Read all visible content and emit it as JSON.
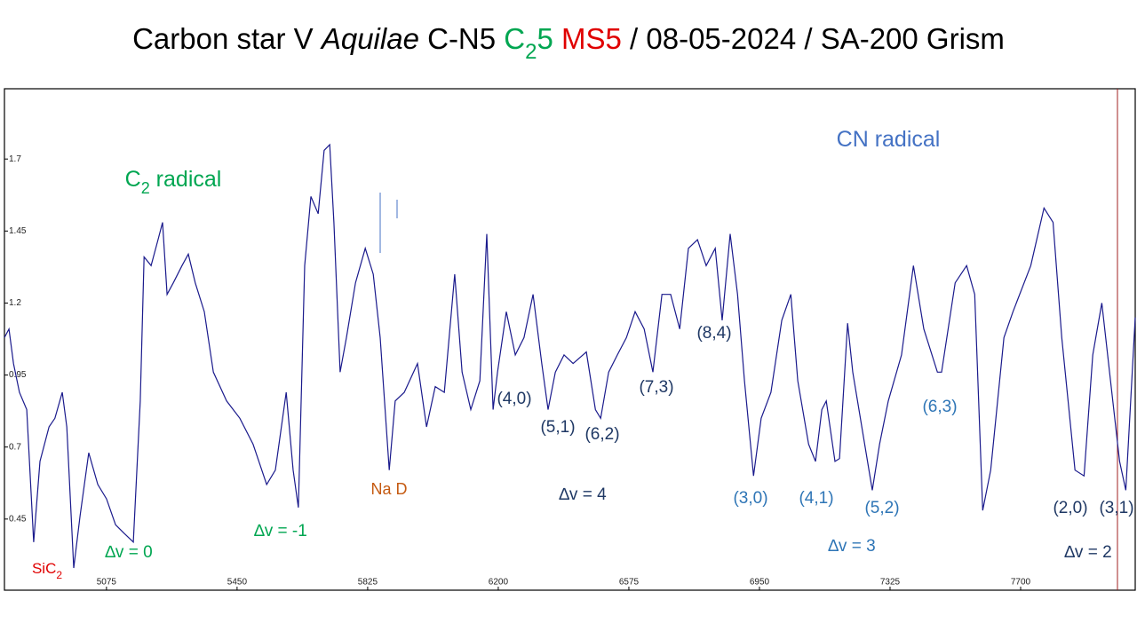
{
  "chart_data": {
    "type": "line",
    "title": [
      "Carbon star V ",
      "Aquilae",
      "  C-N5 ",
      "C",
      "2",
      "5",
      " MS5",
      " / 08-05-2024 / SA-200 Grism"
    ],
    "title_colors": [
      "#000000",
      "#000000",
      "#000000",
      "#00a651",
      "#00a651",
      "#00a651",
      "#e00000",
      "#000000"
    ],
    "x": [
      4782,
      4795,
      4808,
      4825,
      4846,
      4866,
      4884,
      4910,
      4927,
      4948,
      4961,
      4981,
      4999,
      5024,
      5050,
      5075,
      5101,
      5126,
      5152,
      5172,
      5183,
      5203,
      5223,
      5236,
      5249,
      5267,
      5292,
      5310,
      5330,
      5356,
      5382,
      5420,
      5458,
      5496,
      5535,
      5560,
      5591,
      5611,
      5626,
      5644,
      5662,
      5683,
      5700,
      5716,
      5728,
      5746,
      5764,
      5790,
      5818,
      5841,
      5861,
      5887,
      5904,
      5930,
      5968,
      5994,
      6019,
      6045,
      6075,
      6096,
      6121,
      6147,
      6167,
      6185,
      6198,
      6223,
      6249,
      6274,
      6300,
      6325,
      6343,
      6364,
      6389,
      6415,
      6453,
      6479,
      6494,
      6517,
      6542,
      6568,
      6593,
      6619,
      6644,
      6670,
      6695,
      6721,
      6746,
      6772,
      6797,
      6823,
      6843,
      6866,
      6887,
      6907,
      6933,
      6955,
      6983,
      7014,
      7040,
      7060,
      7091,
      7111,
      7129,
      7142,
      7167,
      7180,
      7203,
      7218,
      7244,
      7274,
      7295,
      7320,
      7358,
      7392,
      7422,
      7461,
      7473,
      7512,
      7545,
      7568,
      7591,
      7614,
      7652,
      7678,
      7729,
      7767,
      7793,
      7818,
      7856,
      7882,
      7907,
      7933,
      7958,
      7984,
      8002,
      8029
    ],
    "series": [
      {
        "name": "V Aquilae",
        "color": "#1a1a8c",
        "values": [
          1.08,
          1.11,
          0.99,
          0.89,
          0.83,
          0.37,
          0.65,
          0.77,
          0.8,
          0.89,
          0.77,
          0.28,
          0.46,
          0.68,
          0.57,
          0.52,
          0.43,
          0.4,
          0.37,
          0.86,
          1.36,
          1.33,
          1.42,
          1.48,
          1.23,
          1.27,
          1.33,
          1.37,
          1.27,
          1.17,
          0.96,
          0.86,
          0.8,
          0.71,
          0.57,
          0.62,
          0.89,
          0.62,
          0.49,
          1.33,
          1.57,
          1.51,
          1.73,
          1.75,
          1.48,
          0.96,
          1.08,
          1.27,
          1.39,
          1.3,
          1.08,
          0.62,
          0.86,
          0.89,
          0.99,
          0.77,
          0.91,
          0.89,
          1.3,
          0.96,
          0.83,
          0.93,
          1.44,
          0.83,
          0.96,
          1.17,
          1.02,
          1.08,
          1.23,
          0.99,
          0.83,
          0.96,
          1.02,
          0.99,
          1.03,
          0.83,
          0.8,
          0.96,
          1.02,
          1.08,
          1.17,
          1.11,
          0.96,
          1.23,
          1.23,
          1.11,
          1.39,
          1.42,
          1.33,
          1.39,
          1.14,
          1.44,
          1.23,
          0.93,
          0.6,
          0.8,
          0.89,
          1.14,
          1.23,
          0.93,
          0.71,
          0.65,
          0.83,
          0.86,
          0.65,
          0.66,
          1.13,
          0.96,
          0.77,
          0.55,
          0.71,
          0.86,
          1.02,
          1.33,
          1.11,
          0.96,
          0.96,
          1.27,
          1.33,
          1.23,
          0.48,
          0.62,
          1.08,
          1.17,
          1.33,
          1.53,
          1.48,
          1.08,
          0.62,
          0.6,
          1.02,
          1.2,
          0.93,
          0.65,
          0.55,
          1.15
        ]
      }
    ],
    "xlim": [
      4782,
      8029
    ],
    "ylim": [
      0.203,
      1.944
    ],
    "xticks": [
      5075,
      5450,
      5825,
      6200,
      6575,
      6950,
      7325,
      7700
    ],
    "yticks": [
      1.7,
      1.45,
      1.2,
      {
        "value": 0.95,
        "label": "0.95"
      },
      0.7,
      0.45
    ],
    "annotations": [
      {
        "parts": [
          "C",
          "2",
          " radical"
        ],
        "color": "#00a651"
      },
      {
        "parts": [
          "CN radical"
        ],
        "color": "#4472c4"
      },
      {
        "parts": [
          "SiC",
          "2"
        ],
        "color": "#e00000"
      },
      {
        "parts": [
          "∆v = 0"
        ],
        "color": "#00a651"
      },
      {
        "parts": [
          "∆v = -1"
        ],
        "color": "#00a651"
      },
      {
        "parts": [
          "Na D"
        ],
        "color": "#c55a11"
      },
      {
        "parts": [
          "∆v = 4"
        ],
        "color": "#1f3864"
      },
      {
        "parts": [
          "(4,0)"
        ],
        "color": "#1f3864"
      },
      {
        "parts": [
          "(5,1)"
        ],
        "color": "#1f3864"
      },
      {
        "parts": [
          "(6,2)"
        ],
        "color": "#1f3864"
      },
      {
        "parts": [
          "(7,3)"
        ],
        "color": "#1f3864"
      },
      {
        "parts": [
          "(8,4)"
        ],
        "color": "#1f3864"
      },
      {
        "parts": [
          "(3,0)"
        ],
        "color": "#2e75b6"
      },
      {
        "parts": [
          "(4,1)"
        ],
        "color": "#2e75b6"
      },
      {
        "parts": [
          "(5,2)"
        ],
        "color": "#2e75b6"
      },
      {
        "parts": [
          "∆v = 3"
        ],
        "color": "#2e75b6"
      },
      {
        "parts": [
          "(6,3)"
        ],
        "color": "#2e75b6"
      },
      {
        "parts": [
          "(2,0)"
        ],
        "color": "#1f3864"
      },
      {
        "parts": [
          "(3,1)"
        ],
        "color": "#1f3864"
      },
      {
        "parts": [
          "∆v = 2"
        ],
        "color": "#1f3864"
      }
    ]
  }
}
